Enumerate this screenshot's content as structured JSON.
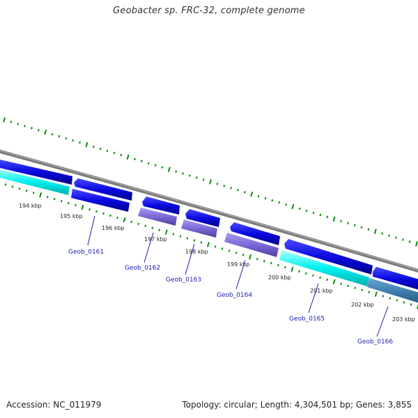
{
  "title": "Geobacter sp. FRC-32, complete genome",
  "footer": {
    "accession": "Accession: NC_011979",
    "summary": "Topology: circular; Length: 4,304,501 bp; Genes: 3,855"
  },
  "scale": {
    "unit": "kbp",
    "labels": [
      "194 kbp",
      "195 kbp",
      "196 kbp",
      "197 kbp",
      "198 kbp",
      "199 kbp",
      "200 kbp",
      "201 kbp",
      "202 kbp",
      "203 kbp"
    ]
  },
  "genes": [
    {
      "name": "Geob_0161"
    },
    {
      "name": "Geob_0162"
    },
    {
      "name": "Geob_0163"
    },
    {
      "name": "Geob_0164"
    },
    {
      "name": "Geob_0165"
    },
    {
      "name": "Geob_0166"
    }
  ],
  "colors": {
    "backbone": "#8a8a8a",
    "forward_cds": "#0a0ae0",
    "reverse_cds": "#0a0ae0",
    "cyan_feature": "#00ffff",
    "purple_feature": "#7b68d6",
    "steel_feature": "#3f7fb0",
    "ticks": "#0a8a0a",
    "gene_label": "#1a1ab0"
  }
}
